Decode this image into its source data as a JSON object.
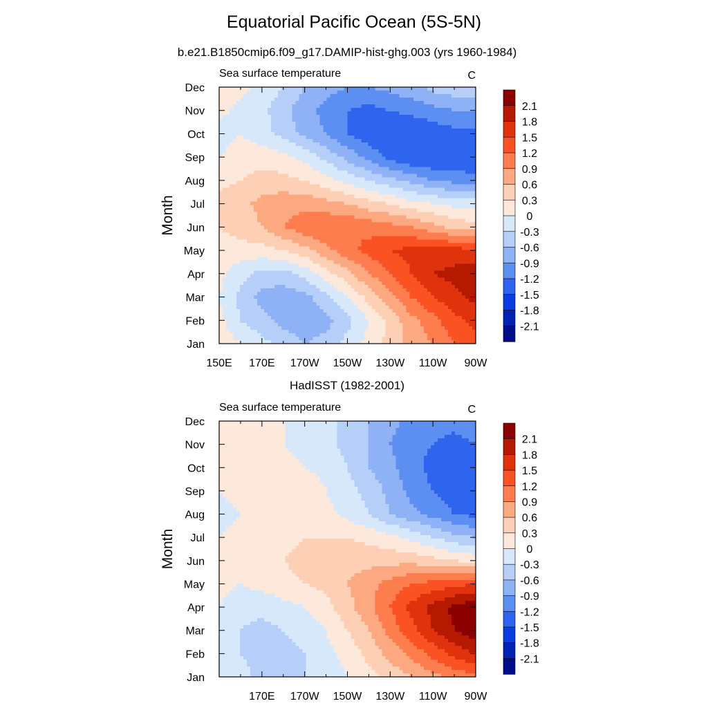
{
  "figure": {
    "title": "Equatorial Pacific Ocean (5S-5N)"
  },
  "colorbar": {
    "levels": [
      "2.1",
      "1.8",
      "1.5",
      "1.2",
      "0.9",
      "0.6",
      "0.3",
      "0",
      "-0.3",
      "-0.6",
      "-0.9",
      "-1.2",
      "-1.5",
      "-1.8",
      "-2.1"
    ],
    "colors_top_to_bottom": [
      "#8b0000",
      "#b51a00",
      "#e0320c",
      "#fb5224",
      "#fd7d4f",
      "#fca982",
      "#fdcfb5",
      "#fde9dc",
      "#d7e8fb",
      "#b5cff9",
      "#8fb2f6",
      "#5d8ff2",
      "#2f64ee",
      "#0b3ee2",
      "#0123b4",
      "#000d8b"
    ]
  },
  "chart_data": [
    {
      "type": "heatmap",
      "panel_title": "b.e21.B1850cmip6.f09_g17.DAMIP-hist-ghg.003 (yrs 1960-1984)",
      "left_string": "Sea surface temperature",
      "right_string": "C",
      "ylabel": "Month",
      "xlabel": "",
      "y_ticks": [
        "Jan",
        "Feb",
        "Mar",
        "Apr",
        "May",
        "Jun",
        "Jul",
        "Aug",
        "Sep",
        "Oct",
        "Nov",
        "Dec"
      ],
      "x_ticks": [
        "150E",
        "170E",
        "170W",
        "150W",
        "130W",
        "110W",
        "90W"
      ],
      "x_range": [
        "150E",
        "90W"
      ],
      "x_grid": [
        "150E",
        "160E",
        "170E",
        "180",
        "170W",
        "160W",
        "150W",
        "140W",
        "130W",
        "120W",
        "110W",
        "100W",
        "90W"
      ],
      "y_grid": [
        "Jan",
        "Feb",
        "Mar",
        "Apr",
        "May",
        "Jun",
        "Jul",
        "Aug",
        "Sep",
        "Oct",
        "Nov",
        "Dec"
      ],
      "values": [
        [
          0.2,
          0.0,
          -0.2,
          -0.4,
          -0.6,
          -0.5,
          -0.2,
          0.1,
          0.4,
          0.7,
          0.9,
          1.2,
          1.4
        ],
        [
          0.1,
          -0.3,
          -0.5,
          -0.7,
          -0.8,
          -0.7,
          -0.4,
          0.0,
          0.4,
          0.8,
          1.1,
          1.4,
          1.6
        ],
        [
          0.0,
          -0.4,
          -0.7,
          -0.8,
          -0.7,
          -0.4,
          0.0,
          0.4,
          0.8,
          1.2,
          1.5,
          1.7,
          1.9
        ],
        [
          0.1,
          -0.2,
          -0.4,
          -0.4,
          -0.2,
          0.2,
          0.5,
          0.9,
          1.2,
          1.5,
          1.8,
          1.9,
          2.0
        ],
        [
          0.2,
          0.2,
          0.2,
          0.3,
          0.5,
          0.8,
          1.1,
          1.3,
          1.5,
          1.6,
          1.6,
          1.6,
          1.6
        ],
        [
          0.3,
          0.4,
          0.6,
          0.9,
          1.1,
          1.2,
          1.2,
          1.1,
          1.0,
          0.9,
          0.7,
          0.5,
          0.4
        ],
        [
          0.4,
          0.5,
          0.7,
          0.8,
          0.8,
          0.7,
          0.6,
          0.4,
          0.3,
          0.1,
          0.0,
          -0.1,
          -0.1
        ],
        [
          0.2,
          0.3,
          0.4,
          0.4,
          0.3,
          0.1,
          -0.1,
          -0.3,
          -0.5,
          -0.7,
          -0.9,
          -1.0,
          -1.1
        ],
        [
          0.0,
          0.2,
          0.2,
          0.1,
          -0.1,
          -0.4,
          -0.7,
          -1.0,
          -1.3,
          -1.5,
          -1.5,
          -1.4,
          -1.5
        ],
        [
          -0.2,
          0.0,
          -0.2,
          -0.4,
          -0.7,
          -0.9,
          -1.2,
          -1.4,
          -1.5,
          -1.5,
          -1.4,
          -1.3,
          -1.3
        ],
        [
          0.1,
          -0.1,
          -0.2,
          -0.5,
          -0.8,
          -1.0,
          -1.2,
          -1.3,
          -1.2,
          -1.1,
          -1.0,
          -0.9,
          -0.9
        ],
        [
          0.2,
          0.1,
          -0.1,
          -0.3,
          -0.6,
          -0.8,
          -0.9,
          -0.9,
          -0.8,
          -0.7,
          -0.5,
          -0.4,
          -0.4
        ]
      ]
    },
    {
      "type": "heatmap",
      "panel_title": "HadISST (1982-2001)",
      "left_string": "Sea surface temperature",
      "right_string": "C",
      "ylabel": "Month",
      "xlabel": "",
      "y_ticks": [
        "Jan",
        "Feb",
        "Mar",
        "Apr",
        "May",
        "Jun",
        "Jul",
        "Aug",
        "Sep",
        "Oct",
        "Nov",
        "Dec"
      ],
      "x_ticks": [
        "170E",
        "170W",
        "150W",
        "130W",
        "110W",
        "90W"
      ],
      "x_range": [
        "150E",
        "90W"
      ],
      "x_grid": [
        "150E",
        "160E",
        "170E",
        "180",
        "170W",
        "160W",
        "150W",
        "140W",
        "130W",
        "120W",
        "110W",
        "100W",
        "90W"
      ],
      "y_grid": [
        "Jan",
        "Feb",
        "Mar",
        "Apr",
        "May",
        "Jun",
        "Jul",
        "Aug",
        "Sep",
        "Oct",
        "Nov",
        "Dec"
      ],
      "values": [
        [
          0.0,
          -0.2,
          -0.4,
          -0.4,
          -0.3,
          -0.2,
          0.0,
          0.2,
          0.4,
          0.6,
          0.8,
          1.0,
          1.1
        ],
        [
          0.0,
          -0.3,
          -0.4,
          -0.4,
          -0.3,
          -0.1,
          0.1,
          0.4,
          0.7,
          1.0,
          1.3,
          1.6,
          1.8
        ],
        [
          0.0,
          -0.3,
          -0.4,
          -0.3,
          -0.2,
          0.0,
          0.3,
          0.6,
          1.0,
          1.4,
          1.8,
          2.1,
          2.3
        ],
        [
          0.0,
          -0.2,
          -0.2,
          -0.1,
          0.0,
          0.2,
          0.5,
          0.8,
          1.2,
          1.6,
          1.9,
          2.2,
          2.3
        ],
        [
          0.1,
          0.0,
          0.1,
          0.2,
          0.3,
          0.4,
          0.6,
          0.8,
          1.0,
          1.2,
          1.3,
          1.4,
          1.5
        ],
        [
          0.1,
          0.1,
          0.2,
          0.3,
          0.4,
          0.5,
          0.5,
          0.5,
          0.5,
          0.5,
          0.4,
          0.3,
          0.2
        ],
        [
          0.0,
          0.1,
          0.2,
          0.2,
          0.3,
          0.3,
          0.3,
          0.2,
          0.1,
          -0.1,
          -0.3,
          -0.5,
          -0.6
        ],
        [
          -0.1,
          0.0,
          0.2,
          0.2,
          0.2,
          0.1,
          -0.1,
          -0.3,
          -0.6,
          -0.8,
          -1.0,
          -1.2,
          -1.3
        ],
        [
          0.0,
          0.1,
          0.2,
          0.3,
          0.2,
          0.0,
          -0.2,
          -0.4,
          -0.7,
          -1.0,
          -1.2,
          -1.4,
          -1.4
        ],
        [
          0.1,
          0.1,
          0.1,
          0.1,
          0.0,
          -0.1,
          -0.3,
          -0.6,
          -0.8,
          -1.1,
          -1.3,
          -1.4,
          -1.4
        ],
        [
          0.1,
          0.1,
          0.1,
          0.0,
          -0.1,
          -0.2,
          -0.4,
          -0.6,
          -0.9,
          -1.1,
          -1.2,
          -1.3,
          -1.2
        ],
        [
          0.1,
          0.1,
          0.1,
          0.0,
          -0.1,
          -0.2,
          -0.4,
          -0.6,
          -0.8,
          -1.0,
          -1.1,
          -1.1,
          -1.0
        ]
      ]
    }
  ]
}
